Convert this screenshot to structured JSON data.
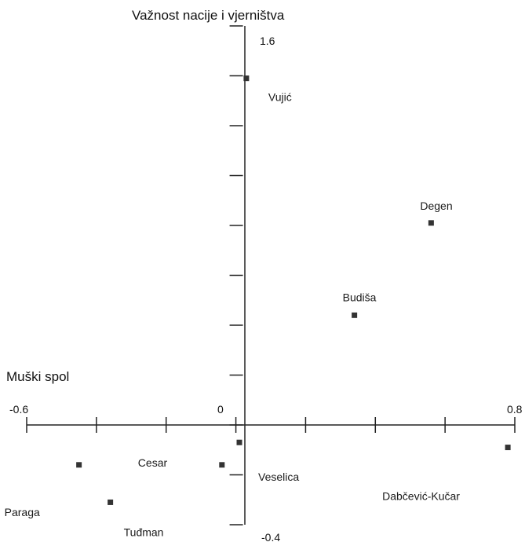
{
  "chart_data": {
    "type": "scatter",
    "title": "",
    "xlabel": "Muški spol",
    "ylabel": "Važnost nacije i vjerništva",
    "xlim": [
      -0.6,
      0.8
    ],
    "ylim": [
      -0.4,
      1.6
    ],
    "grid": false,
    "legend": "none",
    "x_tick_labels": [
      "-0.6",
      "0",
      "0.8"
    ],
    "y_tick_labels": [
      "1.6",
      "-0.4"
    ],
    "marker_color": "#333333",
    "points": [
      {
        "label": "Vujić",
        "x": 0.03,
        "y": 1.39
      },
      {
        "label": "Degen",
        "x": 0.56,
        "y": 0.81
      },
      {
        "label": "Budiša",
        "x": 0.34,
        "y": 0.44
      },
      {
        "label": "Dabčević-Kučar",
        "x": 0.78,
        "y": -0.09
      },
      {
        "label": "Veselica",
        "x": 0.01,
        "y": -0.07
      },
      {
        "label": "Cesar",
        "x": -0.04,
        "y": -0.16
      },
      {
        "label": "Paraga",
        "x": -0.45,
        "y": -0.16
      },
      {
        "label": "Tuđman",
        "x": -0.36,
        "y": -0.31
      }
    ]
  }
}
